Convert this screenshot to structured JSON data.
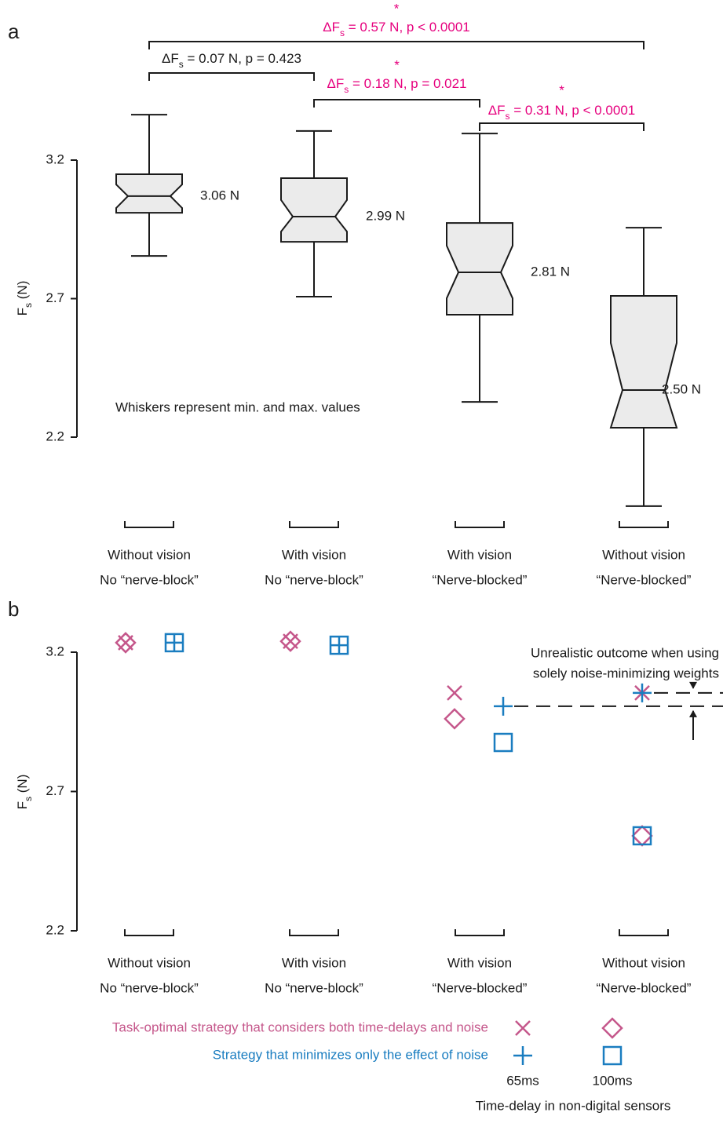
{
  "chart_data": [
    {
      "type": "box",
      "panel": "a",
      "ylabel": [
        "F",
        "s",
        " (N)"
      ],
      "categories": [
        [
          "Without vision",
          "No “nerve-block”"
        ],
        [
          "With vision",
          "No “nerve-block”"
        ],
        [
          "With vision",
          "“Nerve-blocked”"
        ],
        [
          "Without vision",
          "“Nerve-blocked”"
        ]
      ],
      "ylim": [
        2.2,
        3.2
      ],
      "yticks": [
        2.2,
        2.7,
        3.2
      ],
      "color": "#ebebeb",
      "boxes": [
        {
          "min": 2.854,
          "q1": 3.01,
          "median": 3.07,
          "q3": 3.149,
          "max": 3.364,
          "notch": [
            3.027,
            3.112
          ],
          "label": "3.06 N"
        },
        {
          "min": 2.707,
          "q1": 2.905,
          "median": 2.996,
          "q3": 3.135,
          "max": 3.305,
          "notch": [
            2.942,
            3.056
          ],
          "label": "2.99 N"
        },
        {
          "min": 2.327,
          "q1": 2.642,
          "median": 2.795,
          "q3": 2.973,
          "max": 3.296,
          "notch": [
            2.701,
            2.891
          ],
          "label": "2.81 N"
        },
        {
          "min": 1.951,
          "q1": 2.234,
          "median": 2.37,
          "q3": 2.71,
          "max": 2.956,
          "notch": [
            2.234,
            2.54
          ],
          "label": "2.50 N"
        }
      ],
      "note": "Whiskers represent min. and max. values",
      "comparisons": [
        {
          "pre": "ΔF",
          "sub": "s",
          "post": " = 0.57 N, p < 0.0001",
          "star": "*",
          "color": "#e6007e"
        },
        {
          "pre": "ΔF",
          "sub": "s",
          "post": " = 0.07 N, p = 0.423",
          "color": "#1a1a1a"
        },
        {
          "pre": "ΔF",
          "sub": "s",
          "post": " = 0.18 N, p = 0.021",
          "star": "*",
          "color": "#e6007e"
        },
        {
          "pre": "ΔF",
          "sub": "s",
          "post": " = 0.31 N, p < 0.0001",
          "star": "*",
          "color": "#e6007e"
        }
      ]
    },
    {
      "type": "scatter",
      "panel": "b",
      "ylabel": [
        "F",
        "s",
        " (N)"
      ],
      "categories": [
        [
          "Without vision",
          "No “nerve-block”"
        ],
        [
          "With vision",
          "No “nerve-block”"
        ],
        [
          "With vision",
          "“Nerve-blocked”"
        ],
        [
          "Without vision",
          "“Nerve-blocked”"
        ]
      ],
      "ylim": [
        2.2,
        3.2
      ],
      "yticks": [
        2.2,
        2.7,
        3.2
      ],
      "delays": [
        "65ms",
        "100ms"
      ],
      "delay_title": "Time-delay in non-digital sensors",
      "series": [
        {
          "name": "Task-optimal strategy that considers both time-delays and noise",
          "color": "#c5578b",
          "markers": [
            "x",
            "diamond"
          ],
          "values": [
            [
              3.234,
              3.239,
              3.054,
              3.054
            ],
            [
              3.234,
              3.239,
              2.961,
              2.541
            ]
          ]
        },
        {
          "name": "Strategy that minimizes only the effect of noise",
          "color": "#1a7dc0",
          "markers": [
            "plus",
            "square"
          ],
          "values": [
            [
              3.234,
              3.225,
              3.006,
              3.054
            ],
            [
              3.234,
              3.225,
              2.876,
              2.541
            ]
          ]
        }
      ],
      "note": [
        "Unrealistic outcome when using",
        "solely noise-minimizing weights"
      ]
    }
  ]
}
